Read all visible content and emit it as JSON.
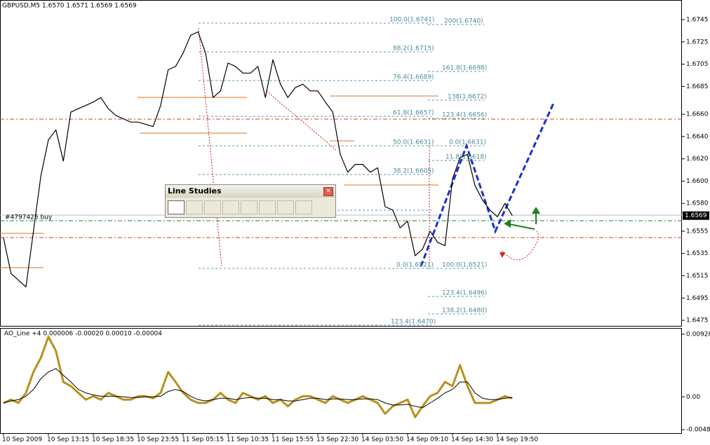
{
  "chart_data": {
    "type": "line",
    "title": "GBPUSD,M5  1.6570 1.6571 1.6569 1.6569",
    "categories": [
      "10 Sep 2009",
      null,
      null,
      null,
      null,
      null,
      "10 Sep 13:15",
      null,
      null,
      null,
      null,
      null,
      "10 Sep 18:35",
      null,
      null,
      null,
      null,
      null,
      "10 Sep 23:55",
      null,
      null,
      null,
      null,
      null,
      "11 Sep 05:15",
      null,
      null,
      null,
      null,
      null,
      "11 Sep 10:35",
      null,
      null,
      null,
      null,
      null,
      "11 Sep 15:55",
      null,
      null,
      null,
      null,
      null,
      "13 Sep 22:30",
      null,
      null,
      null,
      null,
      null,
      "14 Sep 03:50",
      null,
      null,
      null,
      null,
      null,
      "14 Sep 09:10",
      null,
      null,
      null,
      null,
      null,
      "14 Sep 14:30",
      null,
      null,
      null,
      null,
      null,
      "14 Sep 19:50",
      null,
      null
    ],
    "series": [
      {
        "color": "#000000",
        "values": [
          1.6549,
          1.6517,
          1.6511,
          1.6505,
          1.6555,
          1.6605,
          1.6637,
          1.6646,
          1.6618,
          1.6662,
          1.6665,
          1.6668,
          1.6671,
          1.6675,
          1.6665,
          1.6659,
          1.6656,
          1.6653,
          1.6653,
          1.6651,
          1.6649,
          1.6668,
          1.67,
          1.6703,
          1.6715,
          1.6731,
          1.6734,
          1.6715,
          1.6675,
          1.6681,
          1.6706,
          1.6703,
          1.6697,
          1.6697,
          1.6703,
          1.6675,
          1.6709,
          1.6687,
          1.6675,
          1.6684,
          1.6687,
          1.6681,
          1.6681,
          1.6671,
          1.6662,
          1.6624,
          1.6608,
          1.6615,
          1.6615,
          1.6608,
          1.6612,
          1.6577,
          1.6574,
          1.6558,
          1.6564,
          1.6533,
          1.6539,
          1.6555,
          1.6545,
          1.6542,
          1.6602,
          1.6621,
          1.6624,
          1.6596,
          1.6583,
          1.6574,
          1.6568,
          1.658,
          1.6569
        ]
      }
    ],
    "ylim": [
      1.647,
      1.6762
    ],
    "yticks": [
      1.6745,
      1.6725,
      1.6705,
      1.6685,
      {
        "value": 1.666,
        "label": "1.6660"
      },
      {
        "value": 1.664,
        "label": "1.6640"
      },
      {
        "value": 1.662,
        "label": "1.6620"
      },
      {
        "value": 1.66,
        "label": "1.6600"
      },
      {
        "value": 1.658,
        "label": "1.6580"
      },
      1.6555,
      1.6535,
      1.6515,
      1.6495,
      1.6475
    ],
    "annotations": [
      "100.0(1.6741)",
      "200(1.6740)",
      "88.2(1.6715)",
      "161.8(1.6698)",
      "76.4(1.6689)",
      "138(1.6672)",
      "61.8(1.6657)",
      "123.4(1.6656)",
      "50.0(1.6631)",
      "0.0(1.6631)",
      "11.8(1.6618)",
      "38.2(1.6605)",
      "0.0(1.6521)",
      "100.0(1.6521)",
      "123.4(1.6496)",
      "138.2(1.6480)",
      "123.4(1.6470)"
    ],
    "order_label": "#4797425 buy",
    "indicator": {
      "type": "line",
      "title": "AO_Line +4 0.000006 -0.00020 0.00010 -0.00004",
      "series": [
        {
          "color": "#b8901c",
          "values": [
            -0.0009,
            -0.0004,
            -0.0009,
            0.0006,
            0.0037,
            0.0058,
            0.0089,
            0.0068,
            0.0022,
            0.0016,
            0.0006,
            -0.0004,
            0.0001,
            -0.0004,
            0.0006,
            0.0001,
            -0.0004,
            -0.0004,
            0.0001,
            0.0001,
            -0.0002,
            0.0006,
            0.0037,
            0.0022,
            0.0006,
            -0.0004,
            -0.0009,
            -0.0009,
            -0.0004,
            0.0006,
            -0.0004,
            -0.0009,
            0.0006,
            0.0001,
            -0.0004,
            0.0001,
            -0.0009,
            -0.0004,
            -0.0014,
            -0.0004,
            0.0001,
            0.0001,
            -0.0004,
            -0.0009,
            0.0001,
            -0.0004,
            -0.0009,
            -0.0004,
            0.0001,
            -0.0004,
            -0.0009,
            -0.0025,
            -0.0014,
            -0.0009,
            -0.0004,
            -0.003,
            -0.0014,
            0.0001,
            0.0006,
            0.0022,
            0.0016,
            0.0047,
            0.0016,
            -0.0009,
            -0.0009,
            -0.0009,
            -0.0004,
            0.0001,
            -0.0002
          ]
        },
        {
          "color": "#000000",
          "values": [
            -0.0009,
            -0.0006,
            -0.0004,
            0.0001,
            0.0011,
            0.0027,
            0.0037,
            0.0042,
            0.0032,
            0.0022,
            0.0011,
            0.0006,
            0.0003,
            0.0001,
            0.0001,
            0.0001,
            0,
            -0.0001,
            -0.0001,
            0,
            0,
            0.0001,
            0.0008,
            0.0011,
            0.0008,
            0.0001,
            -0.0004,
            -0.0006,
            -0.0004,
            -0.0002,
            -0.0002,
            -0.0004,
            -0.0002,
            -0.0001,
            -0.0002,
            -0.0002,
            -0.0004,
            -0.0004,
            -0.0006,
            -0.0006,
            -0.0004,
            -0.0002,
            -0.0002,
            -0.0004,
            -0.0003,
            -0.0003,
            -0.0004,
            -0.0004,
            -0.0003,
            -0.0003,
            -0.0004,
            -0.0009,
            -0.0012,
            -0.0012,
            -0.0011,
            -0.0014,
            -0.0016,
            -0.0009,
            -0.0002,
            0.0006,
            0.0011,
            0.0022,
            0.0022,
            0.0006,
            -0.0002,
            -0.0004,
            -0.0004,
            -0.0002,
            -0.0001
          ]
        }
      ],
      "ylim": [
        -0.00536,
        0.0101
      ],
      "yticks": [
        0.00928,
        {
          "value": 0,
          "label": "0.00"
        },
        -0.00485
      ]
    }
  },
  "toolbar": {
    "title": "Line Studies"
  }
}
